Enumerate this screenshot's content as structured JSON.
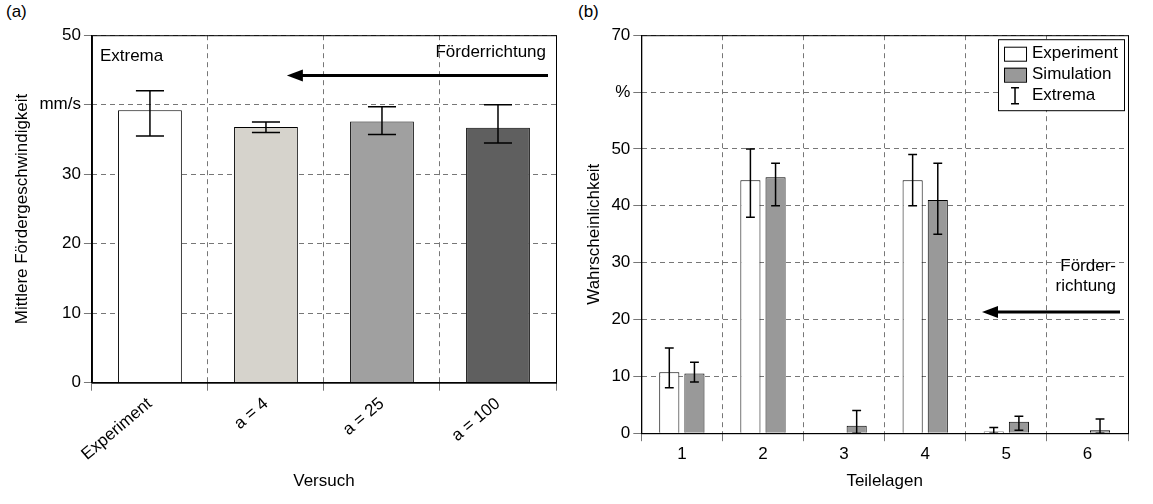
{
  "chart_data": [
    {
      "panel_label": "(a)",
      "type": "bar",
      "categories": [
        "Experiment",
        "a = 4",
        "a = 25",
        "a = 100"
      ],
      "values": [
        39.2,
        36.8,
        37.6,
        36.7
      ],
      "extrema_low": [
        35.5,
        36.0,
        35.7,
        34.5
      ],
      "extrema_high": [
        42.0,
        37.5,
        39.7,
        40.0
      ],
      "colors": [
        "#ffffff",
        "#d6d3cc",
        "#a0a0a0",
        "#5f5f5f"
      ],
      "x_label": "Versuch",
      "y_label": "Mittlere Fördergeschwindigkeit",
      "ylim": [
        0,
        50
      ],
      "yticks": [
        0,
        10,
        20,
        30,
        {
          "value": 40,
          "label": "mm/s"
        },
        50
      ],
      "grid": true,
      "extrema_label": "Extrema",
      "direction_label": "Förderrichtung"
    },
    {
      "panel_label": "(b)",
      "type": "bar",
      "categories": [
        "1",
        "2",
        "3",
        "4",
        "5",
        "6"
      ],
      "series": [
        {
          "name": "Experiment",
          "color": "#ffffff",
          "values": [
            10.7,
            44.5,
            0,
            44.5,
            0.3,
            0
          ],
          "extrema_low": [
            8.0,
            38.0,
            null,
            40.0,
            0.0,
            null
          ],
          "extrema_high": [
            15.0,
            50.0,
            null,
            49.0,
            1.0,
            null
          ]
        },
        {
          "name": "Simulation",
          "color": "#999999",
          "values": [
            10.5,
            45.0,
            1.3,
            41.0,
            2.0,
            0.5
          ],
          "extrema_low": [
            9.0,
            40.0,
            0.0,
            35.0,
            0.5,
            0.0
          ],
          "extrema_high": [
            12.5,
            47.5,
            4.0,
            47.5,
            3.0,
            2.5
          ]
        }
      ],
      "x_label": "Teilelagen",
      "y_label": "Wahrscheinlichkeit",
      "ylim": [
        0,
        70
      ],
      "yticks": [
        0,
        10,
        20,
        30,
        40,
        50,
        {
          "value": 60,
          "label": "%"
        },
        70
      ],
      "grid": true,
      "legend": "top-right",
      "extrema_label": "Extrema",
      "direction_label": [
        "Förder-",
        "richtung"
      ]
    }
  ]
}
